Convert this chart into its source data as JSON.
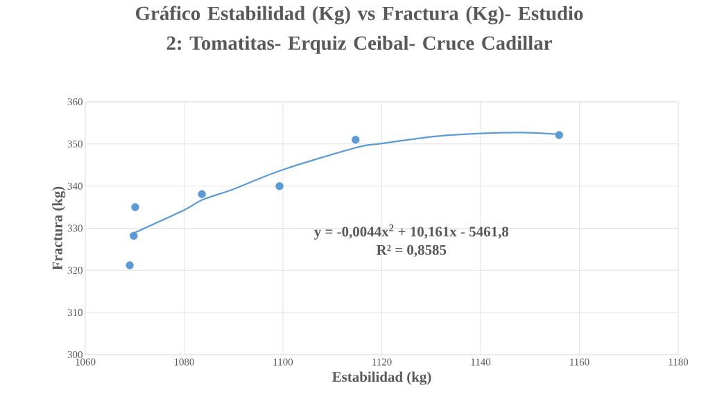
{
  "chart_data": {
    "type": "scatter",
    "title": "Gráfico Estabilidad (Kg) vs Fractura (Kg)- Estudio 2: Tomatitas- Erquiz Ceibal- Cruce Cadillar",
    "xlabel": "Estabilidad (kg)",
    "ylabel": "Fractura (kg)",
    "xlim": [
      1060,
      1180
    ],
    "xticks": [
      1060,
      1080,
      1100,
      1120,
      1140,
      1160,
      1180
    ],
    "ylim": [
      300,
      360
    ],
    "yticks": [
      300,
      310,
      320,
      330,
      340,
      350,
      360
    ],
    "grid": true,
    "series": [
      {
        "color": "#5b9bd5",
        "marker": "circle",
        "x": [
          1069.0,
          1069.8,
          1070.1,
          1083.6,
          1099.3,
          1114.7,
          1155.9
        ],
        "values": [
          321.2,
          328.2,
          335.0,
          338.1,
          340.0,
          351.0,
          352.1
        ]
      },
      {
        "type": "line",
        "color": "#5b9bd5",
        "marker": "none",
        "line_style": "solid",
        "x": [
          1069.0,
          1080.0,
          1083.6,
          1090.0,
          1100.0,
          1114.7,
          1120.0,
          1130.8,
          1140.0,
          1148.4,
          1155.9
        ],
        "values": [
          328.4,
          334.3,
          336.7,
          339.3,
          343.9,
          349.1,
          350.1,
          351.8,
          352.5,
          352.7,
          352.3
        ]
      }
    ],
    "annotations": [
      "y = -0,0044x$^{2}$ + 10,161x - 5461,8",
      "R² = 0,8585"
    ]
  }
}
